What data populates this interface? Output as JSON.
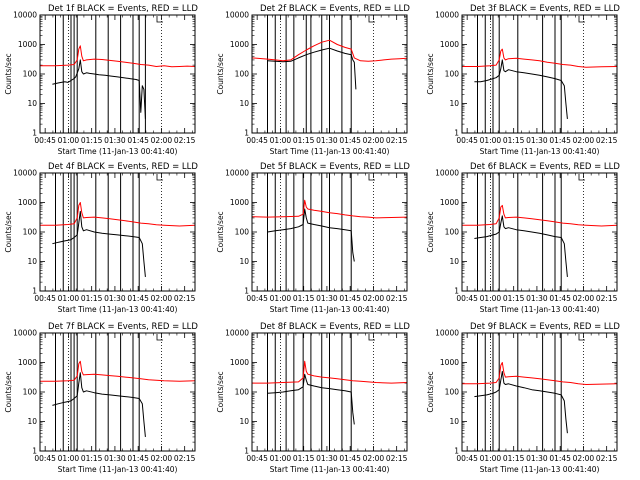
{
  "figure": {
    "panel_titles": [
      "Det 1f BLACK = Events, RED = LLD",
      "Det 2f BLACK = Events, RED = LLD",
      "Det 3f BLACK = Events, RED = LLD",
      "Det 4f BLACK = Events, RED = LLD",
      "Det 5f BLACK = Events, RED = LLD",
      "Det 6f BLACK = Events, RED = LLD",
      "Det 7f BLACK = Events, RED = LLD",
      "Det 8f BLACK = Events, RED = LLD",
      "Det 9f BLACK = Events, RED = LLD"
    ],
    "ylabel": "Counts/sec",
    "xlabel": "Start Time (11-Jan-13 00:41:40)",
    "xtick_labels": [
      "00:45",
      "01:00",
      "01:15",
      "01:30",
      "01:45",
      "02:00",
      "02:15"
    ],
    "ytick_labels": [
      "1",
      "10",
      "100",
      "1000",
      "10000"
    ]
  },
  "colors": {
    "events": "#000000",
    "lld": "#ff0000",
    "axes": "#000000",
    "background": "#ffffff"
  },
  "chart_data": [
    {
      "type": "line",
      "detector": "1f",
      "xlim_minutes": [
        0,
        100
      ],
      "ylim": [
        1,
        10000
      ],
      "yscale": "log",
      "series": [
        {
          "name": "BLACK = Events",
          "color": "#000000",
          "x": [
            8,
            12,
            16,
            18,
            20,
            22,
            23,
            25,
            26,
            27,
            28,
            30,
            32,
            35,
            38,
            42,
            46,
            50,
            54,
            58,
            62,
            64,
            65,
            66,
            67,
            68
          ],
          "y": [
            45,
            50,
            55,
            52,
            60,
            70,
            80,
            150,
            300,
            120,
            100,
            110,
            105,
            100,
            95,
            90,
            85,
            80,
            75,
            70,
            65,
            60,
            5,
            40,
            30,
            3
          ]
        },
        {
          "name": "RED = LLD",
          "color": "#ff0000",
          "x": [
            0,
            10,
            18,
            22,
            24,
            25,
            26,
            27,
            28,
            30,
            35,
            40,
            45,
            50,
            55,
            60,
            65,
            70,
            75,
            80,
            85,
            90,
            95,
            100
          ],
          "y": [
            190,
            190,
            200,
            210,
            300,
            700,
            900,
            400,
            280,
            300,
            320,
            310,
            290,
            270,
            250,
            230,
            210,
            200,
            180,
            190,
            175,
            180,
            185,
            180
          ]
        }
      ],
      "vlines_minutes": [
        0,
        10,
        15,
        20,
        22,
        24,
        36,
        44,
        52,
        60,
        64,
        68
      ]
    },
    {
      "type": "line",
      "detector": "2f",
      "xlim_minutes": [
        0,
        100
      ],
      "ylim": [
        1,
        10000
      ],
      "yscale": "log",
      "series": [
        {
          "name": "BLACK = Events",
          "color": "#000000",
          "x": [
            10,
            15,
            20,
            25,
            30,
            35,
            40,
            45,
            50,
            55,
            60,
            64,
            65,
            66,
            67
          ],
          "y": [
            280,
            270,
            260,
            270,
            350,
            450,
            550,
            650,
            750,
            600,
            500,
            450,
            300,
            250,
            30
          ]
        },
        {
          "name": "RED = LLD",
          "color": "#ff0000",
          "x": [
            0,
            10,
            15,
            20,
            25,
            30,
            35,
            40,
            45,
            50,
            55,
            60,
            64,
            66,
            70,
            75,
            80,
            85,
            90,
            95,
            100
          ],
          "y": [
            350,
            320,
            300,
            280,
            300,
            450,
            650,
            900,
            1200,
            1400,
            1000,
            800,
            700,
            350,
            280,
            270,
            280,
            300,
            320,
            330,
            340
          ]
        }
      ],
      "vlines_minutes": [
        10,
        15,
        22,
        27,
        35,
        38,
        45,
        50,
        58,
        64
      ]
    },
    {
      "type": "line",
      "detector": "3f",
      "xlim_minutes": [
        0,
        100
      ],
      "ylim": [
        1,
        10000
      ],
      "yscale": "log",
      "series": [
        {
          "name": "BLACK = Events",
          "color": "#000000",
          "x": [
            8,
            12,
            16,
            20,
            22,
            24,
            25,
            26,
            27,
            28,
            30,
            35,
            40,
            45,
            50,
            55,
            60,
            64,
            66,
            67,
            68
          ],
          "y": [
            55,
            55,
            60,
            70,
            75,
            90,
            150,
            300,
            130,
            120,
            140,
            120,
            110,
            100,
            90,
            80,
            70,
            60,
            40,
            10,
            3
          ]
        },
        {
          "name": "RED = LLD",
          "color": "#ff0000",
          "x": [
            0,
            10,
            18,
            22,
            24,
            25,
            26,
            27,
            28,
            30,
            35,
            40,
            45,
            50,
            55,
            60,
            65,
            70,
            75,
            80,
            90,
            100
          ],
          "y": [
            180,
            180,
            190,
            200,
            300,
            600,
            700,
            350,
            300,
            330,
            340,
            320,
            300,
            280,
            250,
            230,
            210,
            200,
            180,
            170,
            175,
            180
          ]
        }
      ],
      "vlines_minutes": [
        10,
        15,
        20,
        24,
        36,
        52,
        60,
        64
      ]
    },
    {
      "type": "line",
      "detector": "4f",
      "xlim_minutes": [
        0,
        100
      ],
      "ylim": [
        1,
        10000
      ],
      "yscale": "log",
      "series": [
        {
          "name": "BLACK = Events",
          "color": "#000000",
          "x": [
            8,
            12,
            16,
            20,
            22,
            24,
            25,
            26,
            27,
            28,
            30,
            35,
            40,
            45,
            50,
            55,
            60,
            64,
            66,
            67,
            68
          ],
          "y": [
            40,
            45,
            50,
            55,
            65,
            80,
            200,
            500,
            150,
            110,
            120,
            100,
            90,
            85,
            80,
            75,
            70,
            65,
            40,
            10,
            3
          ]
        },
        {
          "name": "RED = LLD",
          "color": "#ff0000",
          "x": [
            0,
            10,
            18,
            22,
            24,
            25,
            26,
            27,
            28,
            30,
            35,
            40,
            45,
            50,
            55,
            60,
            65,
            70,
            75,
            80,
            90,
            100
          ],
          "y": [
            170,
            170,
            180,
            190,
            300,
            800,
            1000,
            450,
            300,
            310,
            320,
            300,
            280,
            260,
            240,
            220,
            200,
            190,
            175,
            170,
            160,
            170
          ]
        }
      ],
      "vlines_minutes": [
        10,
        15,
        20,
        22,
        24,
        36,
        44,
        52,
        60,
        64
      ]
    },
    {
      "type": "line",
      "detector": "5f",
      "xlim_minutes": [
        0,
        100
      ],
      "ylim": [
        1,
        10000
      ],
      "yscale": "log",
      "series": [
        {
          "name": "BLACK = Events",
          "color": "#000000",
          "x": [
            10,
            15,
            20,
            25,
            30,
            33,
            34,
            35,
            36,
            40,
            45,
            50,
            55,
            60,
            64,
            65,
            66
          ],
          "y": [
            100,
            110,
            120,
            130,
            150,
            180,
            600,
            300,
            200,
            180,
            160,
            140,
            130,
            120,
            110,
            20,
            10
          ]
        },
        {
          "name": "RED = LLD",
          "color": "#ff0000",
          "x": [
            0,
            10,
            20,
            30,
            33,
            34,
            35,
            36,
            40,
            45,
            50,
            55,
            60,
            65,
            70,
            75,
            80,
            90,
            100
          ],
          "y": [
            330,
            320,
            330,
            340,
            400,
            1200,
            700,
            600,
            550,
            500,
            450,
            420,
            380,
            350,
            330,
            320,
            300,
            310,
            320
          ]
        }
      ],
      "vlines_minutes": [
        10,
        15,
        22,
        27,
        33,
        38,
        45,
        50,
        58,
        64
      ]
    },
    {
      "type": "line",
      "detector": "6f",
      "xlim_minutes": [
        0,
        100
      ],
      "ylim": [
        1,
        10000
      ],
      "yscale": "log",
      "series": [
        {
          "name": "BLACK = Events",
          "color": "#000000",
          "x": [
            8,
            12,
            16,
            20,
            22,
            24,
            25,
            26,
            27,
            28,
            30,
            35,
            40,
            45,
            50,
            55,
            60,
            64,
            66,
            67,
            68
          ],
          "y": [
            60,
            65,
            70,
            80,
            85,
            100,
            200,
            350,
            150,
            130,
            140,
            120,
            110,
            100,
            90,
            80,
            70,
            65,
            40,
            10,
            3
          ]
        },
        {
          "name": "RED = LLD",
          "color": "#ff0000",
          "x": [
            0,
            10,
            18,
            22,
            24,
            25,
            26,
            27,
            28,
            30,
            35,
            40,
            45,
            50,
            55,
            60,
            65,
            70,
            75,
            80,
            90,
            100
          ],
          "y": [
            170,
            170,
            180,
            190,
            300,
            700,
            800,
            400,
            300,
            310,
            320,
            300,
            280,
            260,
            240,
            220,
            200,
            190,
            175,
            170,
            160,
            170
          ]
        }
      ],
      "vlines_minutes": [
        10,
        15,
        20,
        24,
        36,
        52,
        60,
        64
      ]
    },
    {
      "type": "line",
      "detector": "7f",
      "xlim_minutes": [
        0,
        100
      ],
      "ylim": [
        1,
        10000
      ],
      "yscale": "log",
      "series": [
        {
          "name": "BLACK = Events",
          "color": "#000000",
          "x": [
            8,
            12,
            16,
            20,
            22,
            24,
            25,
            26,
            27,
            28,
            30,
            35,
            40,
            45,
            50,
            55,
            60,
            64,
            66,
            67,
            68
          ],
          "y": [
            35,
            40,
            45,
            50,
            60,
            75,
            200,
            450,
            140,
            100,
            110,
            95,
            85,
            80,
            75,
            70,
            65,
            60,
            40,
            10,
            3
          ]
        },
        {
          "name": "RED = LLD",
          "color": "#ff0000",
          "x": [
            0,
            10,
            18,
            22,
            24,
            25,
            26,
            27,
            28,
            30,
            35,
            40,
            45,
            50,
            55,
            60,
            65,
            70,
            75,
            80,
            90,
            100
          ],
          "y": [
            230,
            230,
            240,
            250,
            350,
            900,
            1100,
            500,
            380,
            390,
            400,
            380,
            360,
            340,
            320,
            300,
            280,
            260,
            250,
            240,
            230,
            240
          ]
        }
      ],
      "vlines_minutes": [
        10,
        15,
        20,
        22,
        24,
        36,
        44,
        52,
        60,
        64
      ]
    },
    {
      "type": "line",
      "detector": "8f",
      "xlim_minutes": [
        0,
        100
      ],
      "ylim": [
        1,
        10000
      ],
      "yscale": "log",
      "series": [
        {
          "name": "BLACK = Events",
          "color": "#000000",
          "x": [
            10,
            15,
            20,
            25,
            30,
            33,
            34,
            35,
            36,
            40,
            45,
            50,
            55,
            60,
            64,
            65,
            66
          ],
          "y": [
            90,
            95,
            100,
            110,
            120,
            150,
            400,
            250,
            180,
            160,
            140,
            130,
            120,
            110,
            100,
            20,
            8
          ]
        },
        {
          "name": "RED = LLD",
          "color": "#ff0000",
          "x": [
            0,
            10,
            20,
            30,
            33,
            34,
            35,
            36,
            40,
            45,
            50,
            55,
            60,
            65,
            70,
            75,
            80,
            90,
            100
          ],
          "y": [
            200,
            200,
            210,
            220,
            300,
            1100,
            500,
            400,
            350,
            320,
            300,
            280,
            260,
            240,
            230,
            220,
            210,
            200,
            210
          ]
        }
      ],
      "vlines_minutes": [
        10,
        15,
        22,
        27,
        33,
        38,
        45,
        50,
        58,
        64
      ]
    },
    {
      "type": "line",
      "detector": "9f",
      "xlim_minutes": [
        0,
        100
      ],
      "ylim": [
        1,
        10000
      ],
      "yscale": "log",
      "series": [
        {
          "name": "BLACK = Events",
          "color": "#000000",
          "x": [
            8,
            12,
            16,
            20,
            22,
            24,
            25,
            26,
            27,
            28,
            30,
            35,
            40,
            45,
            50,
            55,
            60,
            64,
            66,
            67,
            68
          ],
          "y": [
            70,
            75,
            80,
            90,
            100,
            120,
            250,
            500,
            200,
            180,
            190,
            160,
            140,
            120,
            110,
            100,
            90,
            80,
            50,
            12,
            4
          ]
        },
        {
          "name": "RED = LLD",
          "color": "#ff0000",
          "x": [
            0,
            10,
            18,
            22,
            24,
            25,
            26,
            27,
            28,
            30,
            35,
            40,
            45,
            50,
            55,
            60,
            65,
            70,
            75,
            80,
            90,
            100
          ],
          "y": [
            190,
            190,
            200,
            210,
            300,
            800,
            1000,
            450,
            320,
            330,
            340,
            320,
            300,
            280,
            260,
            240,
            220,
            210,
            190,
            180,
            185,
            190
          ]
        }
      ],
      "vlines_minutes": [
        10,
        15,
        20,
        24,
        36,
        52,
        60,
        64
      ]
    }
  ]
}
